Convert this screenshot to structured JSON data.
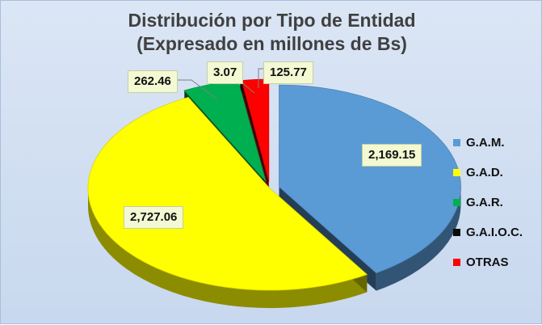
{
  "chart_data": {
    "type": "pie",
    "title_line1": "Distribución por Tipo de Entidad",
    "title_line2": "(Expresado en millones de Bs)",
    "categories": [
      "G.A.M.",
      "G.A.D.",
      "G.A.R.",
      "G.A.I.O.C.",
      "OTRAS"
    ],
    "values": [
      2169.15,
      2727.06,
      262.46,
      3.07,
      125.77
    ],
    "value_labels": [
      "2,169.15",
      "2,727.06",
      "262.46",
      "3.07",
      "125.77"
    ],
    "colors": [
      "#5b9bd5",
      "#ffff00",
      "#00b050",
      "#0a0a0a",
      "#ff0000"
    ],
    "legend_position": "right"
  }
}
